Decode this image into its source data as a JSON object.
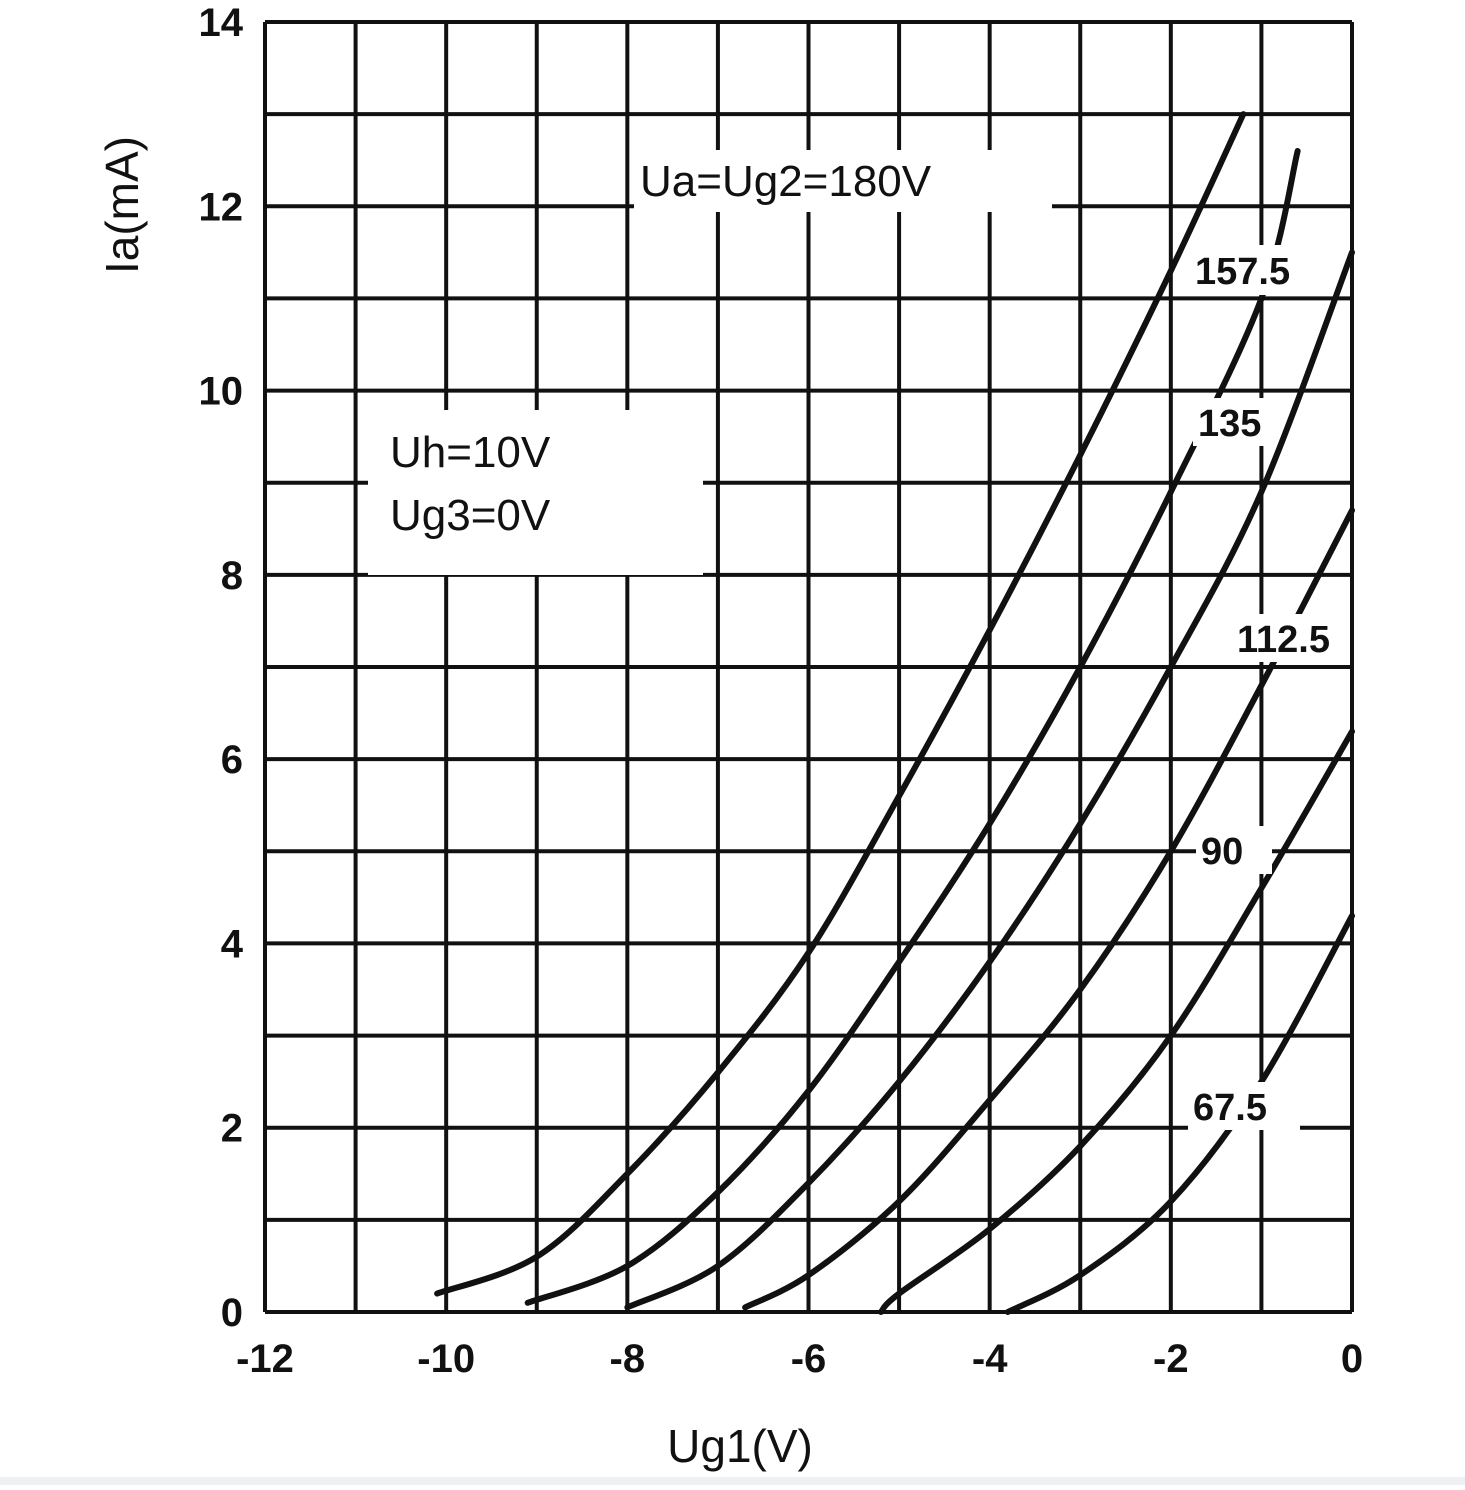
{
  "chart_data": {
    "type": "line",
    "xlabel": "Ug1(V)",
    "ylabel": "Ia(mA)",
    "xlim": [
      -12,
      0
    ],
    "ylim": [
      0,
      14
    ],
    "x_ticks": [
      -12,
      -10,
      -8,
      -6,
      -4,
      -2,
      0
    ],
    "y_ticks": [
      0,
      2,
      4,
      6,
      8,
      10,
      12,
      14
    ],
    "grid": true,
    "annotations": [
      "Ua=Ug2=180V",
      "Uh=10V",
      "Ug3=0V"
    ],
    "series": [
      {
        "name": "157.5",
        "x": [
          -10.1,
          -9,
          -8,
          -7,
          -6,
          -5,
          -4,
          -3,
          -2,
          -1.2
        ],
        "y": [
          0.2,
          0.6,
          1.5,
          2.6,
          3.9,
          5.6,
          7.4,
          9.3,
          11.3,
          13.0
        ]
      },
      {
        "name": "135",
        "x": [
          -9.1,
          -8,
          -7,
          -6,
          -5,
          -4,
          -3,
          -2,
          -1,
          -0.6
        ],
        "y": [
          0.1,
          0.5,
          1.3,
          2.4,
          3.8,
          5.3,
          7.0,
          8.9,
          11.0,
          12.6
        ]
      },
      {
        "name": "112.5",
        "x": [
          -8.0,
          -7,
          -6,
          -5,
          -4,
          -3,
          -2,
          -1,
          0
        ],
        "y": [
          0.05,
          0.5,
          1.4,
          2.5,
          3.8,
          5.3,
          7.0,
          8.9,
          11.5
        ]
      },
      {
        "name": "90",
        "x": [
          -6.7,
          -6,
          -5,
          -4,
          -3,
          -2,
          -1,
          0
        ],
        "y": [
          0.05,
          0.4,
          1.2,
          2.3,
          3.5,
          5.0,
          6.8,
          8.7
        ]
      },
      {
        "name": "",
        "x": [
          -5.2,
          -5,
          -4,
          -3,
          -2,
          -1,
          0
        ],
        "y": [
          0.0,
          0.2,
          0.9,
          1.8,
          3.0,
          4.6,
          6.3
        ]
      },
      {
        "name": "67.5",
        "x": [
          -3.8,
          -3,
          -2,
          -1,
          0
        ],
        "y": [
          0.0,
          0.4,
          1.2,
          2.5,
          4.3
        ]
      }
    ]
  }
}
